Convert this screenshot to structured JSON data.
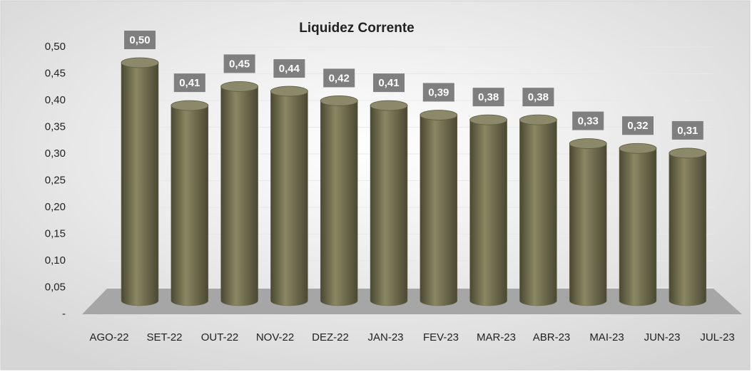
{
  "chart_data": {
    "type": "bar",
    "title": "Liquidez Corrente",
    "categories": [
      "AGO-22",
      "SET-22",
      "OUT-22",
      "NOV-22",
      "DEZ-22",
      "JAN-23",
      "FEV-23",
      "MAR-23",
      "ABR-23",
      "MAI-23",
      "JUN-23",
      "JUL-23"
    ],
    "values": [
      0.5,
      0.41,
      0.45,
      0.44,
      0.42,
      0.41,
      0.39,
      0.38,
      0.38,
      0.33,
      0.32,
      0.31
    ],
    "value_labels": [
      "0,50",
      "0,41",
      "0,45",
      "0,44",
      "0,42",
      "0,41",
      "0,39",
      "0,38",
      "0,38",
      "0,33",
      "0,32",
      "0,31"
    ],
    "color": "#6e6b4a",
    "ylim": [
      0,
      0.5
    ],
    "yticks": [
      {
        "value": 0,
        "label": "-"
      },
      {
        "value": 0.05,
        "label": "0,05"
      },
      {
        "value": 0.1,
        "label": "0,10"
      },
      {
        "value": 0.15,
        "label": "0,15"
      },
      {
        "value": 0.2,
        "label": "0,20"
      },
      {
        "value": 0.25,
        "label": "0,25"
      },
      {
        "value": 0.3,
        "label": "0,30"
      },
      {
        "value": 0.35,
        "label": "0,35"
      },
      {
        "value": 0.4,
        "label": "0,40"
      },
      {
        "value": 0.45,
        "label": "0,45"
      },
      {
        "value": 0.5,
        "label": "0,50"
      }
    ],
    "grid": true
  }
}
